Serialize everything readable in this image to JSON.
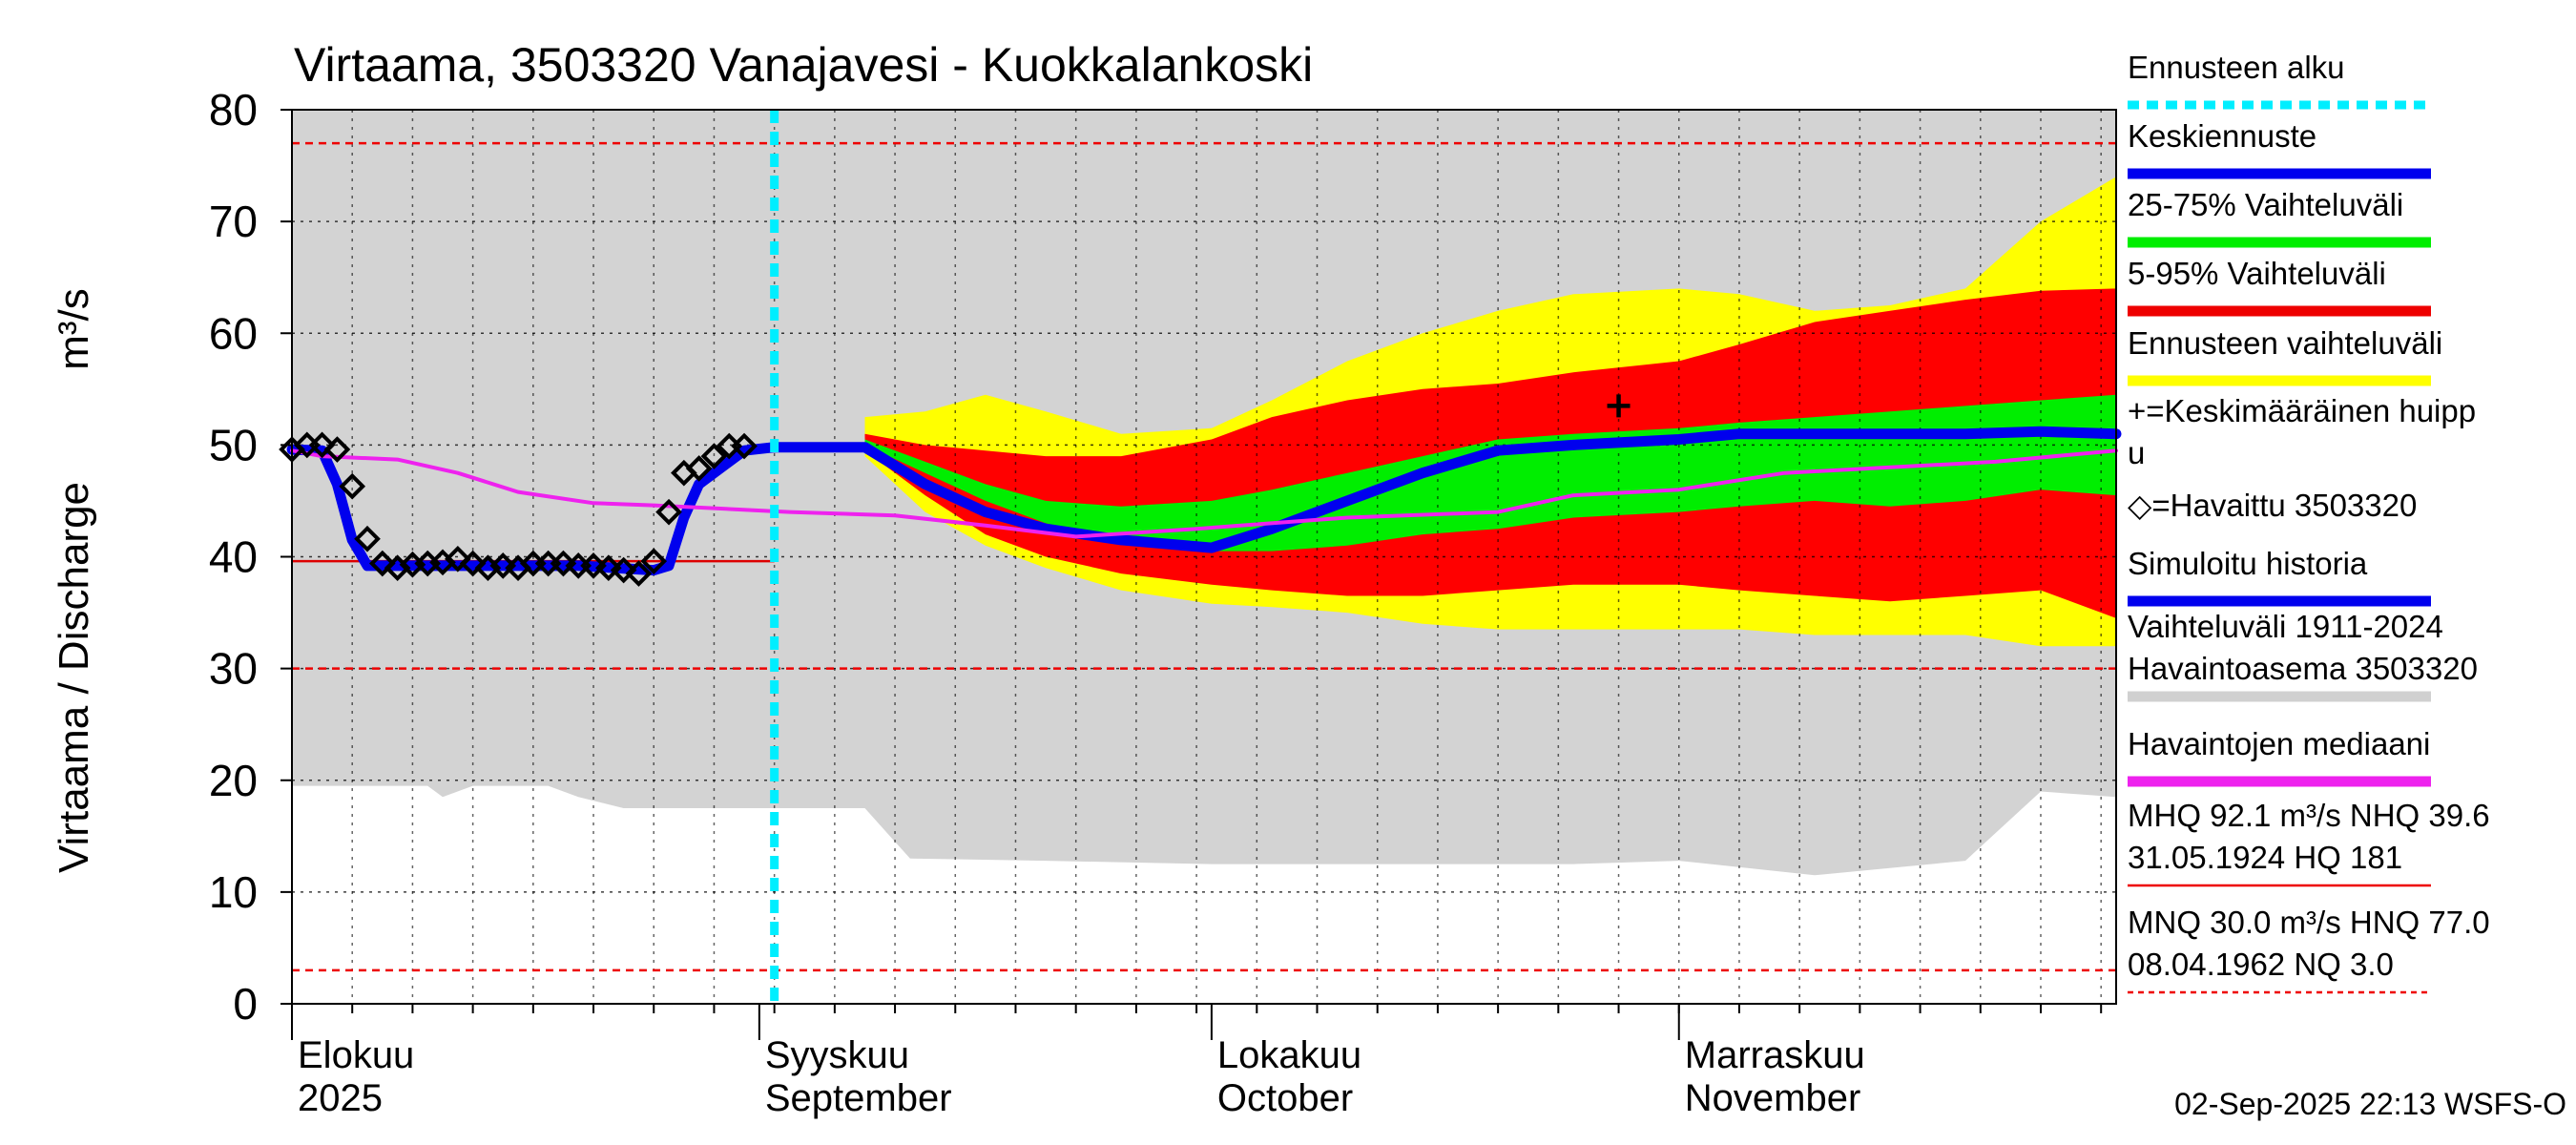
{
  "chart_data": {
    "type": "area",
    "title": "Virtaama, 3503320 Vanajavesi - Kuokkalankoski",
    "ylabel_fi": "Virtaama / Discharge",
    "ylabel_unit": "m³/s",
    "x_range": [
      "2025-08-01",
      "2025-11-30"
    ],
    "ylim": [
      0,
      80
    ],
    "yticks": [
      0,
      10,
      20,
      30,
      40,
      50,
      60,
      70,
      80
    ],
    "month_labels": [
      {
        "date": "2025-08-01",
        "fi": "Elokuu",
        "en": "2025"
      },
      {
        "date": "2025-09-01",
        "fi": "Syyskuu",
        "en": "September"
      },
      {
        "date": "2025-10-01",
        "fi": "Lokakuu",
        "en": "October"
      },
      {
        "date": "2025-11-01",
        "fi": "Marraskuu",
        "en": "November"
      }
    ],
    "forecast_start": "2025-09-02",
    "reference_lines": [
      {
        "name": "HNQ",
        "value": 77.0,
        "style": "dashed",
        "color": "#ee0000"
      },
      {
        "name": "MNQ",
        "value": 30.0,
        "style": "dashed",
        "color": "#ee0000"
      },
      {
        "name": "NQ",
        "value": 3.0,
        "style": "dashed",
        "color": "#ee0000"
      },
      {
        "name": "NHQ",
        "value": 39.6,
        "style": "solid",
        "color": "#dd0000",
        "until": "2025-09-02"
      }
    ],
    "historical_range": {
      "dates": [
        "2025-08-01",
        "2025-08-10",
        "2025-08-11",
        "2025-08-13",
        "2025-08-15",
        "2025-08-18",
        "2025-08-20",
        "2025-08-23",
        "2025-08-26",
        "2025-08-31",
        "2025-09-05",
        "2025-09-08",
        "2025-09-10",
        "2025-09-11",
        "2025-09-20",
        "2025-10-01",
        "2025-10-10",
        "2025-10-20",
        "2025-10-25",
        "2025-11-01",
        "2025-11-10",
        "2025-11-20",
        "2025-11-25",
        "2025-11-30"
      ],
      "low": [
        19.5,
        19.5,
        18.5,
        19.5,
        19.5,
        19.5,
        18.5,
        17.5,
        17.5,
        17.5,
        17.5,
        17.5,
        14.5,
        13,
        12.8,
        12.5,
        12.5,
        12.5,
        12.5,
        12.8,
        11.5,
        12.8,
        19.0,
        18.5
      ],
      "high": [
        80,
        80,
        80,
        80,
        80,
        80,
        80,
        80,
        80,
        80,
        80,
        80,
        80,
        80,
        80,
        80,
        80,
        80,
        80,
        80,
        80,
        80,
        80,
        80
      ]
    },
    "forecast_bands": {
      "dates": [
        "2025-09-08",
        "2025-09-12",
        "2025-09-16",
        "2025-09-20",
        "2025-09-25",
        "2025-10-01",
        "2025-10-05",
        "2025-10-10",
        "2025-10-15",
        "2025-10-20",
        "2025-10-25",
        "2025-11-01",
        "2025-11-05",
        "2025-11-10",
        "2025-11-15",
        "2025-11-20",
        "2025-11-25",
        "2025-11-30"
      ],
      "p0": [
        49,
        44,
        41,
        39,
        37,
        35.8,
        35.5,
        35,
        34,
        33.5,
        33.5,
        33.5,
        33.5,
        33,
        33,
        33,
        32,
        32
      ],
      "p5": [
        49.5,
        45.5,
        42,
        40,
        38.5,
        37.5,
        37,
        36.5,
        36.5,
        37,
        37.5,
        37.5,
        37,
        36.5,
        36,
        36.5,
        37,
        34.5
      ],
      "p25": [
        50,
        47.5,
        45,
        43,
        41.5,
        40.5,
        40.5,
        41,
        42,
        42.5,
        43.5,
        44,
        44.5,
        45,
        44.5,
        45,
        46,
        45.5
      ],
      "p75": [
        50.5,
        48.5,
        46.5,
        45,
        44.5,
        45,
        46,
        47.5,
        49,
        50.5,
        51,
        51.5,
        52,
        52.5,
        53,
        53.5,
        54,
        54.5
      ],
      "p95": [
        51,
        50,
        49.5,
        49,
        49,
        50.5,
        52.5,
        54,
        55,
        55.5,
        56.5,
        57.5,
        59,
        61,
        62,
        63,
        63.8,
        64
      ],
      "p100": [
        52.5,
        53,
        54.5,
        53,
        51,
        51.5,
        54,
        57.5,
        60,
        62,
        63.5,
        64,
        63.5,
        62,
        62.5,
        64,
        70,
        74
      ]
    },
    "series": [
      {
        "name": "Keskiennuste",
        "color": "#0000ee",
        "dates": [
          "2025-09-02",
          "2025-09-08",
          "2025-09-12",
          "2025-09-16",
          "2025-09-20",
          "2025-09-25",
          "2025-10-01",
          "2025-10-05",
          "2025-10-10",
          "2025-10-15",
          "2025-10-20",
          "2025-10-25",
          "2025-11-01",
          "2025-11-05",
          "2025-11-10",
          "2025-11-15",
          "2025-11-20",
          "2025-11-25",
          "2025-11-30"
        ],
        "values": [
          49.8,
          49.8,
          46.5,
          44,
          42.5,
          41.5,
          40.8,
          42.5,
          45,
          47.5,
          49.5,
          50,
          50.5,
          51,
          51,
          51,
          51,
          51.2,
          51
        ]
      },
      {
        "name": "Simuloitu historia",
        "color": "#0000ee",
        "dates": [
          "2025-08-01",
          "2025-08-03",
          "2025-08-04",
          "2025-08-05",
          "2025-08-06",
          "2025-08-10",
          "2025-08-15",
          "2025-08-20",
          "2025-08-25",
          "2025-08-26",
          "2025-08-27",
          "2025-08-28",
          "2025-08-31",
          "2025-09-02"
        ],
        "values": [
          49.6,
          49.5,
          46.5,
          41.5,
          39.2,
          39.2,
          39.2,
          39.2,
          38.8,
          39.2,
          43.5,
          46.5,
          49.5,
          49.8
        ]
      },
      {
        "name": "Havaintojen mediaani",
        "color": "#ee22ee",
        "dates": [
          "2025-08-01",
          "2025-08-03",
          "2025-08-08",
          "2025-08-12",
          "2025-08-16",
          "2025-08-21",
          "2025-08-25",
          "2025-09-03",
          "2025-09-10",
          "2025-09-16",
          "2025-09-22",
          "2025-09-30",
          "2025-10-10",
          "2025-10-20",
          "2025-10-25",
          "2025-11-01",
          "2025-11-08",
          "2025-11-15",
          "2025-11-22",
          "2025-11-30"
        ],
        "values": [
          49.5,
          49,
          48.7,
          47.5,
          45.8,
          44.8,
          44.6,
          44,
          43.7,
          42.8,
          41.8,
          42.5,
          43.5,
          44,
          45.5,
          46,
          47.5,
          48,
          48.5,
          49.5
        ]
      }
    ],
    "observed": {
      "name": "Havaittu 3503320",
      "dates": [
        "2025-08-01",
        "2025-08-02",
        "2025-08-03",
        "2025-08-04",
        "2025-08-05",
        "2025-08-06",
        "2025-08-07",
        "2025-08-08",
        "2025-08-09",
        "2025-08-10",
        "2025-08-11",
        "2025-08-12",
        "2025-08-13",
        "2025-08-14",
        "2025-08-15",
        "2025-08-16",
        "2025-08-17",
        "2025-08-18",
        "2025-08-19",
        "2025-08-20",
        "2025-08-21",
        "2025-08-22",
        "2025-08-23",
        "2025-08-24",
        "2025-08-25",
        "2025-08-26",
        "2025-08-27",
        "2025-08-28",
        "2025-08-29",
        "2025-08-30",
        "2025-08-31"
      ],
      "values": [
        49.6,
        50.0,
        50.0,
        49.6,
        46.3,
        41.6,
        39.4,
        39.0,
        39.3,
        39.4,
        39.5,
        39.8,
        39.4,
        39.0,
        39.2,
        39.0,
        39.4,
        39.4,
        39.4,
        39.2,
        39.2,
        39.0,
        38.8,
        38.5,
        39.6,
        44.0,
        47.5,
        47.9,
        49.0,
        49.9,
        49.9
      ]
    },
    "mean_peak": {
      "name": "Keskimääräinen huippu",
      "date": "2025-10-28",
      "value": 53.5
    },
    "legend": [
      {
        "label": "Ennusteen alku",
        "kind": "dotted",
        "color": "#00eeff"
      },
      {
        "label": "Keskiennuste",
        "kind": "line",
        "color": "#0000ee"
      },
      {
        "label": "25-75% Vaihteluväli",
        "kind": "line",
        "color": "#00ee00"
      },
      {
        "label": "5-95% Vaihteluväli",
        "kind": "line",
        "color": "#ee0000"
      },
      {
        "label": "Ennusteen vaihteluväli",
        "kind": "line",
        "color": "#ffff00"
      },
      {
        "label": "+=Keskimääräinen huipp",
        "label2": "u",
        "kind": "none"
      },
      {
        "label": "◇=Havaittu 3503320",
        "kind": "none"
      },
      {
        "label": "Simuloitu historia",
        "kind": "line",
        "color": "#0000ee"
      },
      {
        "label": "Vaihteluväli 1911-2024",
        "label2": " Havaintoasema 3503320",
        "kind": "line",
        "color": "#d0d0d0"
      },
      {
        "label": "Havaintojen mediaani",
        "kind": "line",
        "color": "#ee22ee"
      },
      {
        "label": "MHQ 92.1 m³/s NHQ 39.6",
        "label2": "31.05.1924 HQ  181",
        "kind": "thin",
        "color": "#ee0000"
      },
      {
        "label": "MNQ 30.0 m³/s HNQ 77.0",
        "label2": "08.04.1962 NQ  3.0",
        "kind": "dashed",
        "color": "#ee0000"
      }
    ],
    "footer": "02-Sep-2025 22:13 WSFS-O",
    "colors": {
      "historical": "#d3d3d3",
      "band_outer": "#ffff00",
      "band_mid": "#ff0000",
      "band_inner": "#00ee00",
      "forecast_line": "#0000ee",
      "median": "#ee22ee",
      "forecast_start": "#00eeff"
    }
  }
}
